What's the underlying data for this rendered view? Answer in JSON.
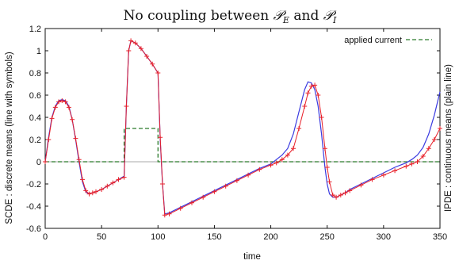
{
  "title": {
    "prefix": "No coupling between ",
    "symbol_1": "𝒫",
    "sub_1": "E",
    "conjunction": " and ",
    "symbol_2": "𝒫",
    "sub_2": "I"
  },
  "chart_data": {
    "type": "line",
    "xlabel": "time",
    "ylabel_left": "SCDE : discrete means (line with symbols)",
    "ylabel_right": "IPDE : continuous means (plain line)",
    "xlim": [
      0,
      350
    ],
    "ylim": [
      -0.6,
      1.2
    ],
    "x_ticks": [
      "0",
      "50",
      "100",
      "150",
      "200",
      "250",
      "300",
      "350"
    ],
    "y_ticks": [
      "-0.6",
      "-0.4",
      "-0.2",
      "0",
      "0.2",
      "0.4",
      "0.6",
      "0.8",
      "1",
      "1.2"
    ],
    "legend_position": "top-right",
    "colors": {
      "discrete": "#e8202a",
      "continuous": "#3a3ae0",
      "applied_current": "#2a7a2a",
      "zero_line": "#aaaaaa"
    },
    "series": [
      {
        "name": "applied current",
        "style": "dashed",
        "x": [
          0,
          70,
          70,
          100,
          100,
          350
        ],
        "y": [
          0,
          0,
          0.3,
          0.3,
          0,
          0
        ]
      },
      {
        "style": "line",
        "x": [
          0,
          3,
          6,
          9,
          12,
          15,
          18,
          21,
          24,
          27,
          30,
          33,
          36,
          39,
          42,
          45,
          50,
          55,
          60,
          65,
          70,
          72,
          74,
          76,
          80,
          85,
          90,
          95,
          100,
          102,
          104,
          106,
          110,
          120,
          130,
          140,
          150,
          160,
          170,
          180,
          190,
          200,
          205,
          210,
          215,
          220,
          225,
          230,
          233,
          236,
          239,
          242,
          245,
          248,
          250,
          252,
          255,
          258,
          262,
          266,
          270,
          280,
          290,
          300,
          310,
          320,
          325,
          330,
          335,
          340,
          345,
          350
        ],
        "y": [
          0,
          0.22,
          0.4,
          0.5,
          0.55,
          0.56,
          0.55,
          0.5,
          0.38,
          0.2,
          0.0,
          -0.18,
          -0.27,
          -0.29,
          -0.28,
          -0.27,
          -0.25,
          -0.22,
          -0.19,
          -0.16,
          -0.13,
          0.5,
          1.0,
          1.09,
          1.07,
          1.02,
          0.95,
          0.88,
          0.8,
          0.2,
          -0.2,
          -0.47,
          -0.46,
          -0.41,
          -0.36,
          -0.31,
          -0.26,
          -0.21,
          -0.16,
          -0.11,
          -0.06,
          -0.02,
          0.02,
          0.06,
          0.12,
          0.25,
          0.45,
          0.65,
          0.72,
          0.71,
          0.65,
          0.5,
          0.25,
          -0.05,
          -0.2,
          -0.29,
          -0.32,
          -0.32,
          -0.3,
          -0.28,
          -0.25,
          -0.2,
          -0.15,
          -0.1,
          -0.05,
          -0.01,
          0.02,
          0.06,
          0.13,
          0.25,
          0.42,
          0.63
        ]
      },
      {
        "style": "line-with-symbols",
        "x": [
          0,
          3,
          6,
          9,
          12,
          15,
          18,
          21,
          24,
          27,
          30,
          33,
          36,
          39,
          42,
          45,
          50,
          55,
          60,
          65,
          70,
          72,
          74,
          76,
          80,
          85,
          90,
          95,
          100,
          102,
          104,
          106,
          110,
          120,
          130,
          140,
          150,
          160,
          170,
          180,
          190,
          200,
          205,
          210,
          215,
          220,
          225,
          230,
          233,
          236,
          239,
          242,
          245,
          248,
          250,
          252,
          255,
          258,
          262,
          266,
          270,
          280,
          290,
          300,
          310,
          320,
          325,
          330,
          335,
          340,
          345,
          350
        ],
        "y": [
          0,
          0.2,
          0.39,
          0.49,
          0.54,
          0.55,
          0.54,
          0.49,
          0.38,
          0.21,
          0.02,
          -0.16,
          -0.26,
          -0.29,
          -0.28,
          -0.27,
          -0.25,
          -0.22,
          -0.19,
          -0.16,
          -0.14,
          0.5,
          1.0,
          1.09,
          1.07,
          1.02,
          0.95,
          0.88,
          0.8,
          0.22,
          -0.2,
          -0.48,
          -0.47,
          -0.42,
          -0.37,
          -0.32,
          -0.27,
          -0.22,
          -0.17,
          -0.12,
          -0.07,
          -0.03,
          -0.01,
          0.02,
          0.06,
          0.12,
          0.3,
          0.5,
          0.62,
          0.68,
          0.69,
          0.6,
          0.4,
          0.12,
          -0.05,
          -0.18,
          -0.3,
          -0.32,
          -0.3,
          -0.28,
          -0.26,
          -0.21,
          -0.16,
          -0.12,
          -0.08,
          -0.04,
          -0.02,
          0.0,
          0.05,
          0.12,
          0.2,
          0.3
        ]
      }
    ]
  }
}
